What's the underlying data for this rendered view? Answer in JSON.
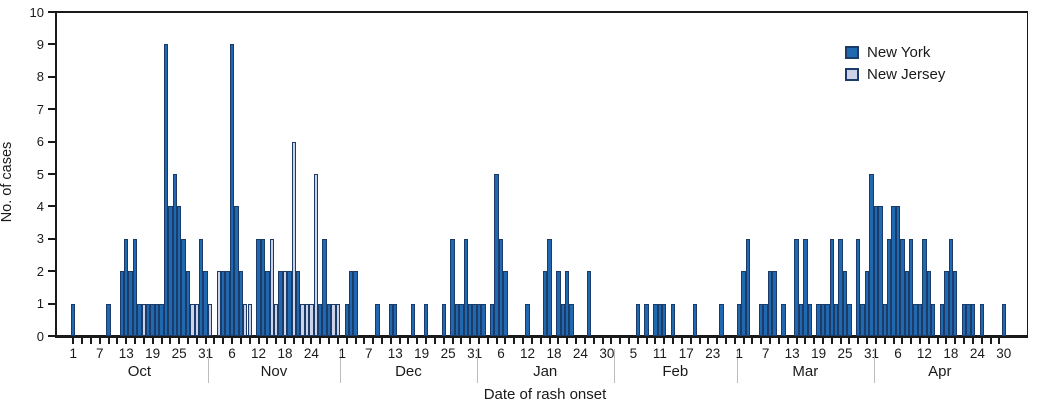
{
  "chart_data": {
    "type": "bar",
    "title": "",
    "xlabel": "Date of rash onset",
    "ylabel": "No. of cases",
    "ylim": [
      0,
      10
    ],
    "yticks": [
      0,
      1,
      2,
      3,
      4,
      5,
      6,
      7,
      8,
      9,
      10
    ],
    "grid": "off",
    "legend_position": "top-right",
    "series_colors": {
      "New York": "#2068b0",
      "New Jersey": "#ccd3e8"
    },
    "bar_border_color": "#1b3c69",
    "legend": [
      {
        "name": "New York",
        "color": "#2068b0"
      },
      {
        "name": "New Jersey",
        "color": "#ccd3e8"
      }
    ],
    "months": [
      {
        "label": "Oct",
        "days": 31,
        "tick_labels": [
          1,
          7,
          13,
          19,
          25,
          31
        ],
        "new_york": [
          1,
          0,
          0,
          0,
          0,
          0,
          0,
          0,
          1,
          0,
          0,
          2,
          3,
          2,
          3,
          1,
          0,
          1,
          1,
          1,
          1,
          9,
          4,
          5,
          4,
          3,
          2,
          0,
          0,
          3,
          2
        ],
        "new_jersey": [
          0,
          0,
          0,
          0,
          0,
          0,
          0,
          0,
          0,
          0,
          0,
          0,
          0,
          0,
          0,
          0,
          1,
          0,
          0,
          0,
          0,
          0,
          0,
          0,
          0,
          0,
          0,
          1,
          1,
          0,
          0
        ]
      },
      {
        "label": "Nov",
        "days": 30,
        "tick_labels": [
          6,
          12,
          18,
          24
        ],
        "new_york": [
          0,
          0,
          0,
          2,
          2,
          9,
          4,
          2,
          0,
          0,
          0,
          3,
          3,
          2,
          0,
          0,
          2,
          0,
          2,
          0,
          2,
          0,
          0,
          0,
          0,
          1,
          3,
          1,
          0,
          0
        ],
        "new_jersey": [
          1,
          0,
          2,
          0,
          0,
          0,
          0,
          0,
          1,
          1,
          0,
          0,
          0,
          0,
          3,
          1,
          0,
          2,
          0,
          6,
          0,
          1,
          1,
          1,
          5,
          0,
          0,
          0,
          1,
          1
        ]
      },
      {
        "label": "Dec",
        "days": 31,
        "tick_labels": [
          1,
          7,
          13,
          19,
          25,
          31
        ],
        "new_york": [
          0,
          1,
          2,
          2,
          0,
          0,
          0,
          0,
          1,
          0,
          0,
          1,
          1,
          0,
          0,
          0,
          1,
          0,
          0,
          1,
          0,
          0,
          0,
          1,
          0,
          3,
          1,
          1,
          3,
          1,
          1
        ],
        "new_jersey": [
          0,
          0,
          0,
          0,
          0,
          0,
          0,
          0,
          0,
          0,
          0,
          0,
          0,
          0,
          0,
          0,
          0,
          0,
          0,
          0,
          0,
          0,
          0,
          0,
          0,
          0,
          0,
          0,
          0,
          0,
          0
        ]
      },
      {
        "label": "Jan",
        "days": 31,
        "tick_labels": [
          6,
          12,
          18,
          24,
          30
        ],
        "new_york": [
          1,
          1,
          0,
          1,
          5,
          3,
          2,
          0,
          0,
          0,
          0,
          1,
          0,
          0,
          0,
          2,
          3,
          0,
          2,
          1,
          2,
          1,
          0,
          0,
          0,
          2,
          0,
          0,
          0,
          0,
          0
        ],
        "new_jersey": [
          0,
          0,
          0,
          0,
          0,
          0,
          0,
          0,
          0,
          0,
          0,
          0,
          0,
          0,
          0,
          0,
          0,
          0,
          0,
          0,
          0,
          0,
          0,
          0,
          0,
          0,
          0,
          0,
          0,
          0,
          0
        ]
      },
      {
        "label": "Feb",
        "days": 28,
        "tick_labels": [
          5,
          11,
          17,
          23
        ],
        "new_york": [
          0,
          0,
          0,
          0,
          0,
          1,
          0,
          1,
          0,
          1,
          1,
          1,
          0,
          1,
          0,
          0,
          0,
          0,
          1,
          0,
          0,
          0,
          0,
          0,
          1,
          0,
          0,
          0
        ],
        "new_jersey": [
          0,
          0,
          0,
          0,
          0,
          0,
          0,
          0,
          0,
          0,
          0,
          0,
          0,
          0,
          0,
          0,
          0,
          0,
          0,
          0,
          0,
          0,
          0,
          0,
          0,
          0,
          0,
          0
        ]
      },
      {
        "label": "Mar",
        "days": 31,
        "tick_labels": [
          1,
          7,
          13,
          19,
          25,
          31
        ],
        "new_york": [
          1,
          2,
          3,
          0,
          0,
          1,
          1,
          2,
          2,
          0,
          1,
          0,
          0,
          3,
          1,
          3,
          1,
          0,
          1,
          1,
          1,
          3,
          1,
          3,
          2,
          1,
          0,
          3,
          1,
          2,
          5
        ],
        "new_jersey": [
          0,
          0,
          0,
          0,
          0,
          0,
          0,
          0,
          0,
          0,
          0,
          0,
          0,
          0,
          0,
          0,
          0,
          0,
          0,
          0,
          0,
          0,
          0,
          0,
          0,
          0,
          0,
          0,
          0,
          0,
          0
        ]
      },
      {
        "label": "Apr",
        "days": 30,
        "tick_labels": [
          6,
          12,
          18,
          24,
          30
        ],
        "new_york": [
          4,
          4,
          1,
          3,
          4,
          4,
          3,
          2,
          3,
          1,
          1,
          3,
          2,
          1,
          0,
          1,
          2,
          3,
          2,
          0,
          1,
          1,
          1,
          0,
          1,
          0,
          0,
          0,
          0,
          1
        ],
        "new_jersey": [
          0,
          0,
          0,
          0,
          0,
          0,
          0,
          0,
          0,
          0,
          0,
          0,
          0,
          0,
          0,
          0,
          0,
          0,
          0,
          0,
          0,
          0,
          0,
          0,
          0,
          0,
          0,
          0,
          0,
          0
        ]
      }
    ]
  }
}
